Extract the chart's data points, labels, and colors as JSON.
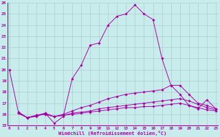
{
  "xlabel": "Windchill (Refroidissement éolien,°C)",
  "bg_color": "#c8ecec",
  "line_color": "#aa00aa",
  "grid_color": "#aacccc",
  "xmin": 0,
  "xmax": 23,
  "ymin": 15,
  "ymax": 26,
  "curves": [
    {
      "x": [
        0,
        1,
        2,
        3,
        4,
        5,
        6,
        7,
        8,
        9,
        10,
        11,
        12,
        13,
        14,
        15,
        16,
        17,
        18,
        19,
        20,
        21,
        22,
        23
      ],
      "y": [
        20.0,
        16.2,
        15.7,
        15.8,
        16.1,
        15.2,
        15.8,
        19.2,
        20.4,
        22.2,
        22.4,
        24.0,
        24.8,
        25.0,
        25.8,
        25.0,
        24.5,
        21.0,
        18.6,
        17.8,
        16.8,
        16.5,
        17.3,
        16.5
      ]
    },
    {
      "x": [
        1,
        2,
        3,
        4,
        5,
        6,
        7,
        8,
        9,
        10,
        11,
        12,
        13,
        14,
        15,
        16,
        17,
        18,
        19,
        20,
        21,
        22,
        23
      ],
      "y": [
        16.2,
        15.7,
        15.9,
        16.1,
        15.8,
        16.0,
        16.3,
        16.6,
        16.8,
        17.1,
        17.4,
        17.6,
        17.8,
        17.9,
        18.0,
        18.1,
        18.2,
        18.6,
        18.6,
        17.8,
        17.0,
        16.8,
        16.5
      ]
    },
    {
      "x": [
        1,
        2,
        3,
        4,
        5,
        6,
        7,
        8,
        9,
        10,
        11,
        12,
        13,
        14,
        15,
        16,
        17,
        18,
        19,
        20,
        21,
        22,
        23
      ],
      "y": [
        16.1,
        15.7,
        15.9,
        16.0,
        15.8,
        15.9,
        16.1,
        16.2,
        16.3,
        16.5,
        16.6,
        16.7,
        16.8,
        16.9,
        17.0,
        17.1,
        17.2,
        17.3,
        17.4,
        17.2,
        16.9,
        16.6,
        16.4
      ]
    },
    {
      "x": [
        1,
        2,
        3,
        4,
        5,
        6,
        7,
        8,
        9,
        10,
        11,
        12,
        13,
        14,
        15,
        16,
        17,
        18,
        19,
        20,
        21,
        22,
        23
      ],
      "y": [
        16.1,
        15.7,
        15.9,
        16.0,
        15.8,
        15.9,
        16.0,
        16.1,
        16.2,
        16.3,
        16.4,
        16.5,
        16.6,
        16.6,
        16.7,
        16.7,
        16.8,
        16.9,
        17.0,
        16.8,
        16.6,
        16.4,
        16.3
      ]
    }
  ]
}
